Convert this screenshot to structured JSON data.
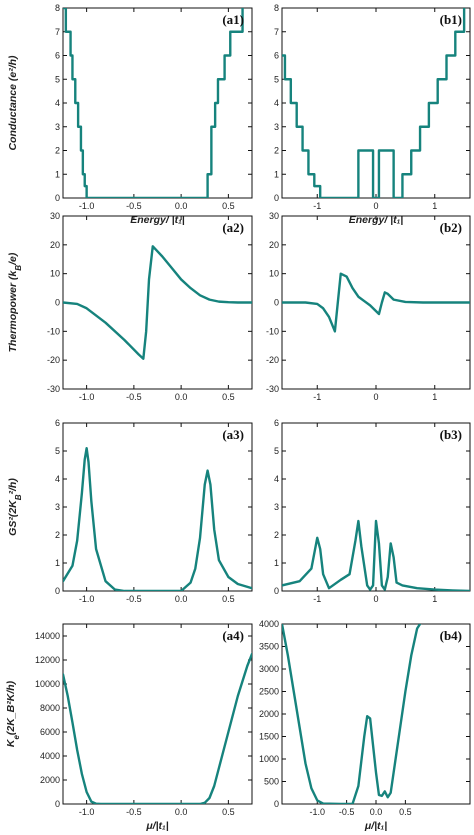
{
  "chart_data": [
    {
      "type": "line",
      "panel_label": "(a1)",
      "ylabel": "Conductance (e²/h)",
      "xlabel": "Energy/ |t₁|",
      "xlim": [
        -1.25,
        0.75
      ],
      "ylim": [
        0,
        8
      ],
      "xticks": [
        -1.0,
        -0.5,
        0.0,
        0.5
      ],
      "xtick_labels": [
        "-1.0",
        "-0.5",
        "0.0",
        "0.5"
      ],
      "yticks": [
        0,
        1,
        2,
        3,
        4,
        5,
        6,
        7,
        8
      ],
      "ytick_labels": [
        "0",
        "1",
        "2",
        "3",
        "4",
        "5",
        "6",
        "7",
        "8"
      ],
      "series": [
        {
          "x": [
            -1.25,
            -1.22,
            -1.22,
            -1.17,
            -1.17,
            -1.15,
            -1.15,
            -1.12,
            -1.12,
            -1.09,
            -1.09,
            -1.06,
            -1.06,
            -1.04,
            -1.04,
            -1.02,
            -1.02,
            -1.0,
            -1.0,
            0.28,
            0.28,
            0.32,
            0.32,
            0.36,
            0.36,
            0.39,
            0.39,
            0.42,
            0.42,
            0.46,
            0.46,
            0.52,
            0.52,
            0.58,
            0.58,
            0.65,
            0.65
          ],
          "y": [
            8,
            8,
            7,
            7,
            6,
            6,
            5,
            5,
            4,
            4,
            3,
            3,
            2,
            2,
            1,
            1,
            0.5,
            0.5,
            0,
            0,
            1,
            1,
            3,
            3,
            4,
            4,
            5,
            5,
            5,
            5,
            6,
            6,
            7,
            7,
            7,
            7,
            8
          ]
        }
      ],
      "xaxis_label_shown": true
    },
    {
      "type": "line",
      "panel_label": "(b1)",
      "ylabel": "",
      "xlabel": "Energy/ |t₁|",
      "xlim": [
        -1.6,
        1.6
      ],
      "ylim": [
        0,
        8
      ],
      "xticks": [
        -1,
        0,
        1
      ],
      "xtick_labels": [
        "-1",
        "0",
        "1"
      ],
      "yticks": [
        0,
        1,
        2,
        3,
        4,
        5,
        6,
        7,
        8
      ],
      "ytick_labels": [
        "0",
        "1",
        "2",
        "3",
        "4",
        "5",
        "6",
        "7",
        "8"
      ],
      "series": [
        {
          "x": [
            -1.6,
            -1.55,
            -1.55,
            -1.45,
            -1.45,
            -1.35,
            -1.35,
            -1.25,
            -1.25,
            -1.15,
            -1.15,
            -1.05,
            -1.05,
            -0.95,
            -0.95,
            -0.3,
            -0.3,
            -0.05,
            -0.05,
            0.05,
            0.05,
            0.3,
            0.3,
            0.45,
            0.45,
            0.6,
            0.6,
            0.75,
            0.75,
            0.9,
            0.9,
            1.05,
            1.05,
            1.2,
            1.2,
            1.35,
            1.35,
            1.5,
            1.5
          ],
          "y": [
            6,
            6,
            5,
            5,
            4,
            4,
            3,
            3,
            2,
            2,
            1,
            1,
            0.5,
            0.5,
            0,
            0,
            2,
            2,
            0,
            0,
            2,
            2,
            0,
            0,
            1,
            1,
            2,
            2,
            3,
            3,
            4,
            4,
            5,
            5,
            6,
            6,
            7,
            7,
            8
          ]
        }
      ],
      "xaxis_label_shown": true
    },
    {
      "type": "line",
      "panel_label": "(a2)",
      "ylabel": "Thermopower (k_B/e)",
      "xlabel": "",
      "xlim": [
        -1.25,
        0.75
      ],
      "ylim": [
        -30,
        30
      ],
      "xticks": [
        -1.0,
        -0.5,
        0.0,
        0.5
      ],
      "xtick_labels": [
        "-1.0",
        "-0.5",
        "0.0",
        "0.5"
      ],
      "yticks": [
        -30,
        -20,
        -10,
        0,
        10,
        20,
        30
      ],
      "ytick_labels": [
        "-30",
        "-20",
        "-10",
        "0",
        "10",
        "20",
        "30"
      ],
      "series": [
        {
          "x": [
            -1.25,
            -1.1,
            -1.0,
            -0.8,
            -0.6,
            -0.45,
            -0.4,
            -0.37,
            -0.34,
            -0.3,
            -0.2,
            -0.1,
            0.0,
            0.1,
            0.2,
            0.3,
            0.4,
            0.5,
            0.6,
            0.75
          ],
          "y": [
            0,
            -0.5,
            -2,
            -7,
            -13,
            -18,
            -19.5,
            -10,
            8,
            19.5,
            16,
            12,
            8,
            5,
            2.5,
            1,
            0.3,
            0.1,
            0,
            0
          ]
        }
      ]
    },
    {
      "type": "line",
      "panel_label": "(b2)",
      "ylabel": "",
      "xlabel": "",
      "xlim": [
        -1.6,
        1.6
      ],
      "ylim": [
        -30,
        30
      ],
      "xticks": [
        -1,
        0,
        1
      ],
      "xtick_labels": [
        "-1",
        "0",
        "1"
      ],
      "yticks": [
        -30,
        -20,
        -10,
        0,
        10,
        20,
        30
      ],
      "ytick_labels": [
        "-30",
        "-20",
        "-10",
        "0",
        "10",
        "20",
        "30"
      ],
      "series": [
        {
          "x": [
            -1.6,
            -1.2,
            -1.0,
            -0.9,
            -0.8,
            -0.7,
            -0.6,
            -0.5,
            -0.4,
            -0.3,
            -0.2,
            -0.1,
            0.0,
            0.05,
            0.1,
            0.15,
            0.2,
            0.3,
            0.5,
            0.8,
            1.6
          ],
          "y": [
            0,
            0,
            -0.5,
            -2,
            -5,
            -10,
            10,
            9,
            5,
            2,
            0.5,
            -1,
            -3,
            -4,
            0,
            3.5,
            3,
            1,
            0.2,
            0,
            0
          ]
        }
      ]
    },
    {
      "type": "line",
      "panel_label": "(a3)",
      "ylabel": "GS²(2K_B²/h)",
      "xlabel": "",
      "xlim": [
        -1.25,
        0.75
      ],
      "ylim": [
        0,
        6
      ],
      "xticks": [
        -1.0,
        -0.5,
        0.0,
        0.5
      ],
      "xtick_labels": [
        "-1.0",
        "-0.5",
        "0.0",
        "0.5"
      ],
      "yticks": [
        0,
        1,
        2,
        3,
        4,
        5,
        6
      ],
      "ytick_labels": [
        "0",
        "1",
        "2",
        "3",
        "4",
        "5",
        "6"
      ],
      "series": [
        {
          "x": [
            -1.25,
            -1.15,
            -1.1,
            -1.05,
            -1.02,
            -1.0,
            -0.98,
            -0.95,
            -0.9,
            -0.8,
            -0.7,
            -0.6,
            -0.5,
            -0.3,
            -0.1,
            0.0,
            0.1,
            0.15,
            0.2,
            0.25,
            0.28,
            0.31,
            0.35,
            0.4,
            0.5,
            0.6,
            0.75
          ],
          "y": [
            0.35,
            0.9,
            1.8,
            3.5,
            4.7,
            5.1,
            4.6,
            3.2,
            1.5,
            0.35,
            0.05,
            0,
            0,
            0,
            0,
            0,
            0.3,
            0.8,
            1.9,
            3.8,
            4.3,
            3.8,
            2.2,
            1.1,
            0.5,
            0.25,
            0.1
          ]
        }
      ]
    },
    {
      "type": "line",
      "panel_label": "(b3)",
      "ylabel": "",
      "xlabel": "",
      "xlim": [
        -1.6,
        1.6
      ],
      "ylim": [
        0,
        6
      ],
      "xticks": [
        -1,
        0,
        1
      ],
      "xtick_labels": [
        "-1",
        "0",
        "1"
      ],
      "yticks": [
        0,
        1,
        2,
        3,
        4,
        5,
        6
      ],
      "ytick_labels": [
        "0",
        "1",
        "2",
        "3",
        "4",
        "5",
        "6"
      ],
      "series": [
        {
          "x": [
            -1.6,
            -1.3,
            -1.1,
            -1.0,
            -0.95,
            -0.9,
            -0.8,
            -0.6,
            -0.45,
            -0.35,
            -0.3,
            -0.25,
            -0.15,
            -0.1,
            -0.05,
            0.0,
            0.05,
            0.1,
            0.15,
            0.2,
            0.25,
            0.3,
            0.35,
            0.45,
            0.7,
            1.0,
            1.3,
            1.6
          ],
          "y": [
            0.2,
            0.35,
            0.8,
            1.9,
            1.5,
            0.6,
            0.1,
            0.4,
            0.6,
            1.8,
            2.5,
            1.6,
            0.2,
            0.05,
            0.2,
            2.5,
            1.7,
            0.2,
            0.05,
            0.5,
            1.7,
            1.2,
            0.3,
            0.2,
            0.1,
            0.05,
            0.02,
            0
          ]
        }
      ]
    },
    {
      "type": "line",
      "panel_label": "(a4)",
      "ylabel": "K_e(2K_B²K/h)",
      "xlabel": "μ/|t₁|",
      "xlim": [
        -1.25,
        0.75
      ],
      "ylim": [
        0,
        15000
      ],
      "xticks": [
        -1.0,
        -0.5,
        0.0,
        0.5
      ],
      "xtick_labels": [
        "-1.0",
        "-0.5",
        "0.0",
        "0.5"
      ],
      "yticks": [
        0,
        2000,
        4000,
        6000,
        8000,
        10000,
        12000,
        14000
      ],
      "ytick_labels": [
        "0",
        "2000",
        "4000",
        "6000",
        "8000",
        "10000",
        "12000",
        "14000"
      ],
      "series": [
        {
          "x": [
            -1.25,
            -1.2,
            -1.15,
            -1.1,
            -1.05,
            -1.0,
            -0.95,
            -0.9,
            -0.85,
            -0.8,
            -0.5,
            0.0,
            0.2,
            0.25,
            0.3,
            0.35,
            0.4,
            0.5,
            0.6,
            0.7,
            0.75
          ],
          "y": [
            10800,
            9000,
            6800,
            4500,
            2500,
            1000,
            200,
            20,
            0,
            0,
            0,
            0,
            0,
            100,
            500,
            1500,
            3000,
            6000,
            9000,
            11500,
            12500
          ]
        }
      ]
    },
    {
      "type": "line",
      "panel_label": "(b4)",
      "ylabel": "",
      "xlabel": "μ/|t₁|",
      "xlim": [
        -1.6,
        1.6
      ],
      "ylim": [
        0,
        4000
      ],
      "xticks": [
        -1.0,
        -0.5,
        0.0,
        0.5
      ],
      "xtick_labels": [
        "-1.0",
        "-0.5",
        "0.0",
        "0.5"
      ],
      "yticks": [
        0,
        500,
        1000,
        1500,
        2000,
        2500,
        3000,
        3500,
        4000
      ],
      "ytick_labels": [
        "0",
        "500",
        "1000",
        "1500",
        "2000",
        "2500",
        "3000",
        "3500",
        "4000"
      ],
      "series": [
        {
          "x": [
            -1.6,
            -1.5,
            -1.4,
            -1.3,
            -1.2,
            -1.1,
            -1.0,
            -0.9,
            -0.6,
            -0.4,
            -0.3,
            -0.2,
            -0.15,
            -0.1,
            0.0,
            0.05,
            0.1,
            0.15,
            0.2,
            0.25,
            0.3,
            0.4,
            0.5,
            0.6,
            0.7,
            0.75
          ],
          "y": [
            4000,
            3300,
            2500,
            1700,
            900,
            350,
            80,
            10,
            0,
            0,
            400,
            1500,
            1950,
            1900,
            700,
            200,
            180,
            280,
            150,
            250,
            700,
            1600,
            2500,
            3300,
            3900,
            4000
          ]
        }
      ]
    }
  ]
}
